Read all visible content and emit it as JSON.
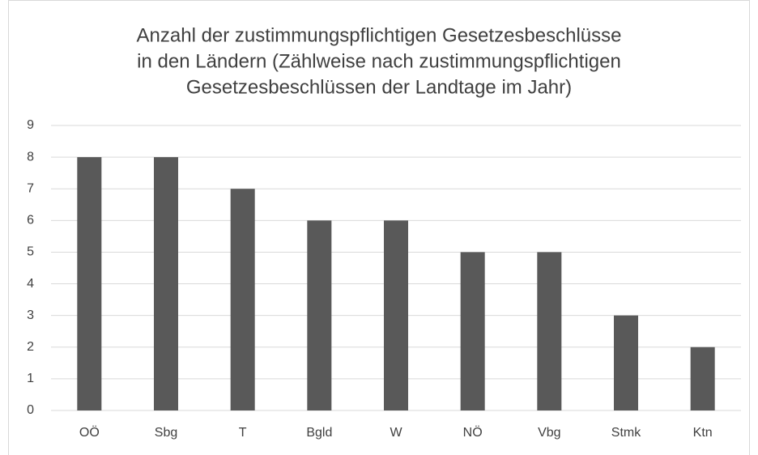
{
  "chart_data": {
    "type": "bar",
    "title": [
      "Anzahl der zustimmungspflichtigen Gesetzesbeschlüsse",
      "in den Ländern (Zählweise nach zustimmungspflichtigen",
      "Gesetzesbeschlüssen der Landtage im Jahr)"
    ],
    "categories": [
      "OÖ",
      "Sbg",
      "T",
      "Bgld",
      "W",
      "NÖ",
      "Vbg",
      "Stmk",
      "Ktn"
    ],
    "values": [
      8,
      8,
      7,
      6,
      6,
      5,
      5,
      3,
      2
    ],
    "color": "#595959",
    "ylim": [
      0,
      9
    ],
    "yticks": [
      0,
      1,
      2,
      3,
      4,
      5,
      6,
      7,
      8,
      9
    ],
    "grid": true
  }
}
